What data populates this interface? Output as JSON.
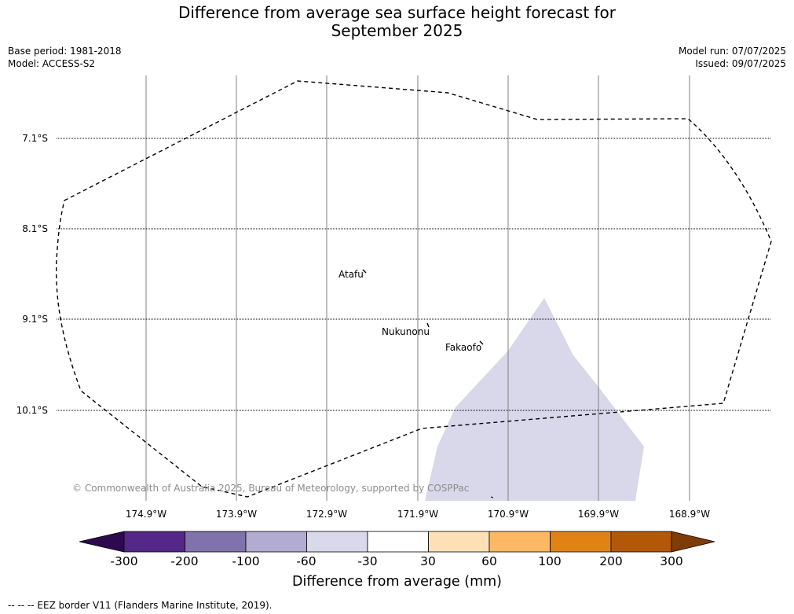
{
  "header": {
    "title_line1": "Difference from average sea surface height forecast for",
    "title_line2": "September 2025",
    "base_period": "Base period: 1981-2018",
    "model": "Model: ACCESS-S2",
    "model_run": "Model run: 07/07/2025",
    "issued": "Issued: 09/07/2025"
  },
  "map": {
    "latitudes": [
      "7.1°S",
      "8.1°S",
      "9.1°S",
      "10.1°S"
    ],
    "longitudes": [
      "174.9°W",
      "173.9°W",
      "172.9°W",
      "171.9°W",
      "170.9°W",
      "169.9°W",
      "168.9°W"
    ],
    "places": [
      "Atafu",
      "Nukunonu",
      "Fakaofo"
    ],
    "copyright": "© Commonwealth of Australia 2025, Bureau of Meteorology, supported by COSPPac",
    "anomaly_region_category": "-60 to -30",
    "anomaly_region_color": "#d8d8ea"
  },
  "colorbar": {
    "ticks": [
      "-300",
      "-200",
      "-100",
      "-60",
      "-30",
      "30",
      "60",
      "100",
      "200",
      "300"
    ],
    "colors": [
      "#2d0a4f",
      "#542788",
      "#8073ac",
      "#b2abd2",
      "#d8daeb",
      "#ffffff",
      "#fee0b6",
      "#fdb863",
      "#e08214",
      "#b35806",
      "#7f3b08"
    ],
    "label": "Difference from average (mm)"
  },
  "legend": {
    "eez_text": "--  --  -- EEZ border V11 (Flanders Marine Institute, 2019)."
  }
}
